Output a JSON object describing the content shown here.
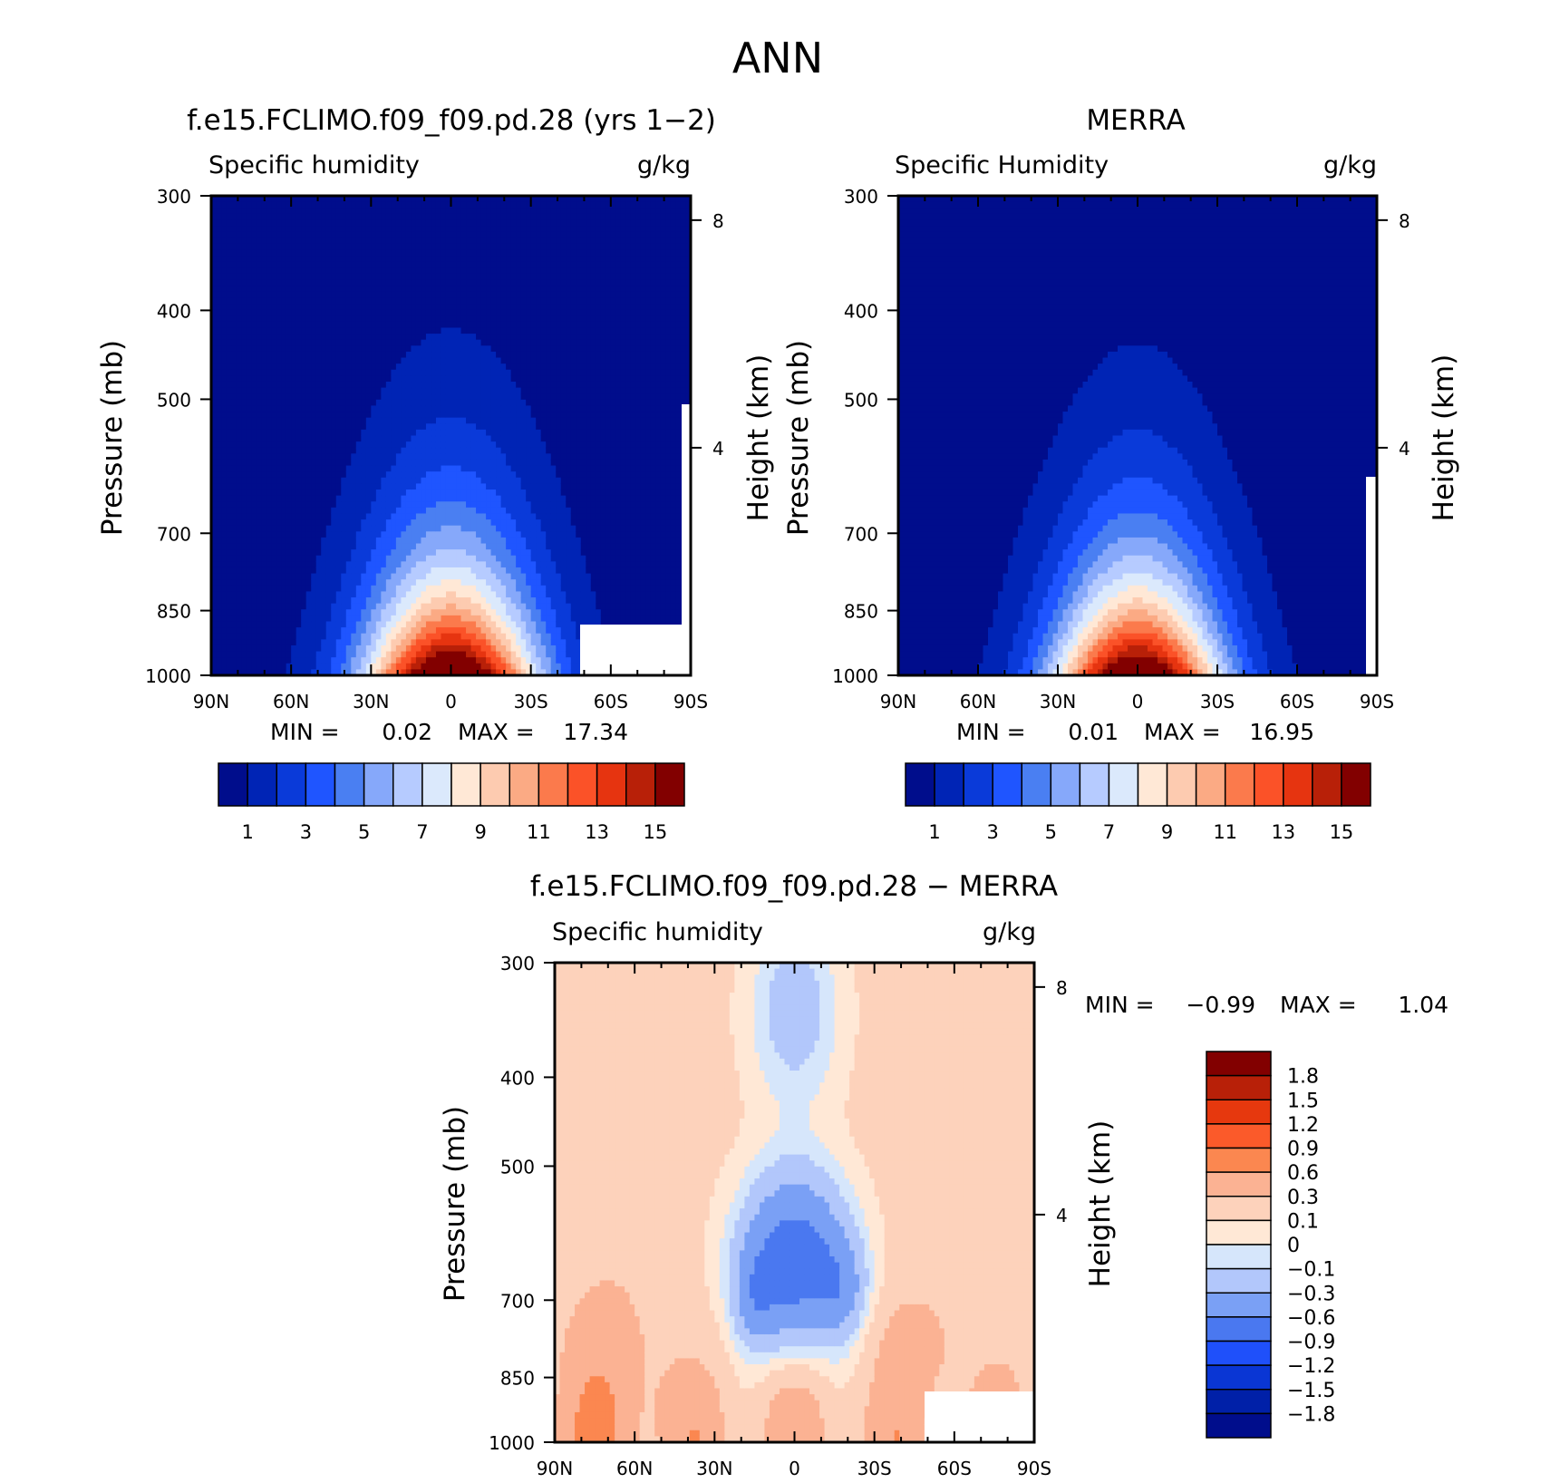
{
  "figure_title": "ANN",
  "colors": {
    "abs_scale": [
      "#000d8c",
      "#0024b5",
      "#0a3ad9",
      "#1f55ff",
      "#4a7ff2",
      "#86a8fa",
      "#b6cbff",
      "#dbe9fc",
      "#ffe8d6",
      "#fdcbb0",
      "#fbaa84",
      "#fb7a4c",
      "#fb5228",
      "#e63410",
      "#b82008",
      "#820000"
    ],
    "diff_scale": [
      "#000d8c",
      "#0020a8",
      "#0a36d4",
      "#1f50fa",
      "#4a78f0",
      "#7aa0f5",
      "#b2c7fb",
      "#d6e6fb",
      "#ffe8d6",
      "#fdd2bb",
      "#fbb293",
      "#fb8750",
      "#fb5a2a",
      "#e6380e",
      "#b82008",
      "#820000"
    ]
  },
  "chart_data": [
    {
      "type": "heatmap",
      "panel_title": "f.e15.FCLIMO.f09_f09.pd.28 (yrs 1−2)",
      "left_label": "Specific humidity",
      "right_label": "g/kg",
      "xlabel": "",
      "ylabel": "Pressure (mb)",
      "y2label": "Height (km)",
      "x_ticks": [
        "90N",
        "60N",
        "30N",
        "0",
        "30S",
        "60S",
        "90S"
      ],
      "y_ticks": [
        300,
        400,
        500,
        700,
        850,
        1000
      ],
      "y2_ticks": [
        8,
        4
      ],
      "ylim": [
        1000,
        300
      ],
      "min_label": "MIN =",
      "min_value": "0.02",
      "max_label": "MAX =",
      "max_value": "17.34",
      "colorbar_labels": [
        "1",
        "3",
        "5",
        "7",
        "9",
        "11",
        "13",
        "15"
      ],
      "field": {
        "peak": 17.34,
        "width_deg": 32,
        "scale_height_frac": 0.22
      }
    },
    {
      "type": "heatmap",
      "panel_title": "MERRA",
      "left_label": "Specific Humidity",
      "right_label": "g/kg",
      "xlabel": "",
      "ylabel": "Pressure (mb)",
      "y2label": "Height (km)",
      "x_ticks": [
        "90N",
        "60N",
        "30N",
        "0",
        "30S",
        "60S",
        "90S"
      ],
      "y_ticks": [
        300,
        400,
        500,
        700,
        850,
        1000
      ],
      "y2_ticks": [
        8,
        4
      ],
      "ylim": [
        1000,
        300
      ],
      "min_label": "MIN =",
      "min_value": "0.01",
      "max_label": "MAX =",
      "max_value": "16.95",
      "colorbar_labels": [
        "1",
        "3",
        "5",
        "7",
        "9",
        "11",
        "13",
        "15"
      ],
      "field": {
        "peak": 16.95,
        "width_deg": 31,
        "scale_height_frac": 0.21
      }
    },
    {
      "type": "heatmap",
      "panel_title": "f.e15.FCLIMO.f09_f09.pd.28 − MERRA",
      "left_label": "Specific humidity",
      "right_label": "g/kg",
      "xlabel": "",
      "ylabel": "Pressure (mb)",
      "y2label": "Height (km)",
      "x_ticks": [
        "90N",
        "60N",
        "30N",
        "0",
        "30S",
        "60S",
        "90S"
      ],
      "y_ticks": [
        300,
        400,
        500,
        700,
        850,
        1000
      ],
      "y2_ticks": [
        8,
        4
      ],
      "ylim": [
        1000,
        300
      ],
      "min_label": "MIN =",
      "min_value": "−0.99",
      "max_label": "MAX =",
      "max_value": "1.04",
      "colorbar_labels": [
        "1.8",
        "1.5",
        "1.2",
        "0.9",
        "0.6",
        "0.3",
        "0.1",
        "0",
        "−0.1",
        "−0.3",
        "−0.6",
        "−0.9",
        "−1.2",
        "−1.5",
        "−1.8"
      ],
      "levels": [
        -1.8,
        -1.5,
        -1.2,
        -0.9,
        -0.6,
        -0.3,
        -0.1,
        0,
        0.1,
        0.3,
        0.6,
        0.9,
        1.2,
        1.5,
        1.8
      ]
    }
  ]
}
